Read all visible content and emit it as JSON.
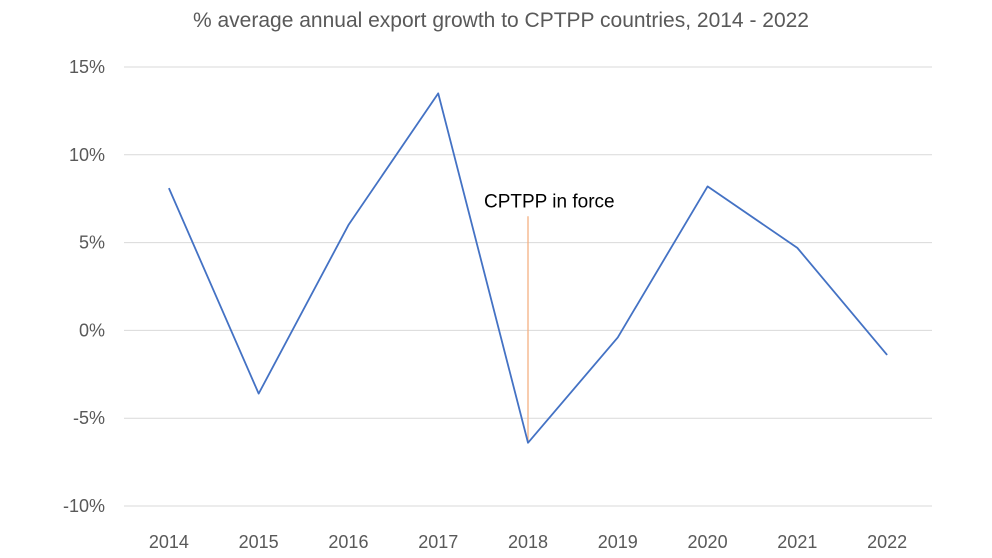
{
  "chart_data": {
    "type": "line",
    "title": "% average annual export growth to CPTPP countries, 2014 - 2022",
    "xlabel": "",
    "ylabel": "",
    "categories": [
      "2014",
      "2015",
      "2016",
      "2017",
      "2018",
      "2019",
      "2020",
      "2021",
      "2022"
    ],
    "series": [
      {
        "values": [
          8.1,
          -3.6,
          6.0,
          13.5,
          -6.4,
          -0.4,
          8.2,
          4.7,
          -1.4
        ],
        "color": "#4472c4"
      }
    ],
    "ylim": [
      -10,
      15
    ],
    "yticks": [
      -10,
      -5,
      0,
      5,
      10,
      15
    ],
    "ytick_labels": [
      "-10%",
      "-5%",
      "0%",
      "5%",
      "10%",
      "15%"
    ],
    "grid": true,
    "legend": "none",
    "annotations": [
      {
        "text": "CPTPP in force",
        "x": "2018",
        "y_top": 6.5,
        "line_color": "#f4b183"
      }
    ]
  }
}
